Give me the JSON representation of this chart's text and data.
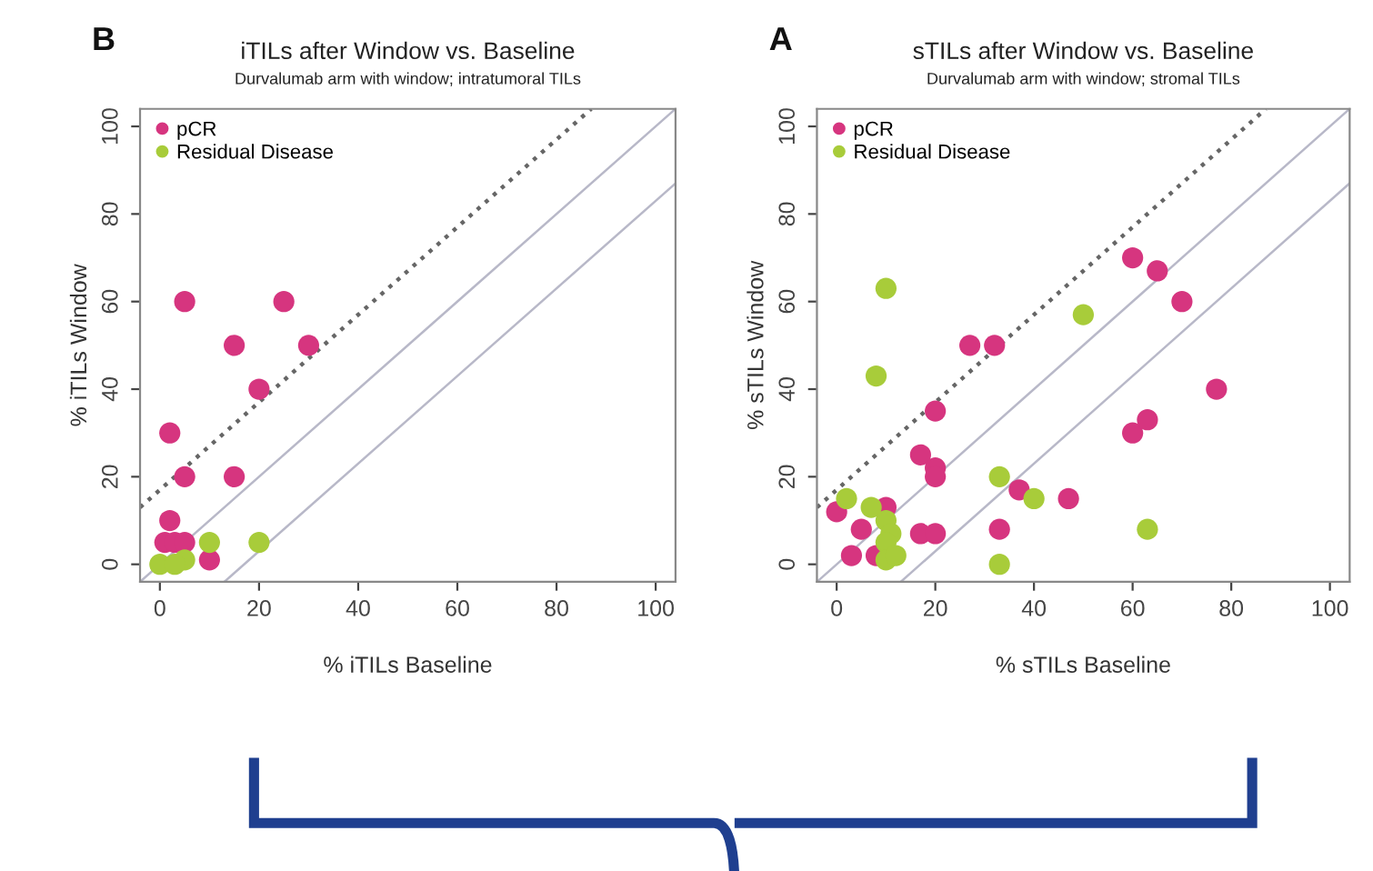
{
  "chart_data": [
    {
      "type": "scatter",
      "title": "iTILs after Window vs. Baseline",
      "subtitle": "Durvalumab arm with window; intratumoral TILs",
      "xlabel": "% iTILs Baseline",
      "ylabel": "% iTILs Window",
      "annotations": [
        "B"
      ],
      "xlim": [
        -4,
        104
      ],
      "ylim": [
        -4,
        104
      ],
      "xticks": [
        0,
        20,
        40,
        60,
        80,
        100
      ],
      "yticks": [
        0,
        20,
        40,
        60,
        80,
        100
      ],
      "grid": false,
      "legend": "top left",
      "marker": "circle",
      "series": [
        {
          "name": "pCR",
          "color": "#d6357f",
          "x": [
            5,
            25,
            15,
            30,
            20,
            2,
            5,
            15,
            2,
            1,
            3,
            5,
            10
          ],
          "values": [
            60,
            60,
            50,
            50,
            40,
            30,
            20,
            20,
            10,
            5,
            5,
            5,
            1
          ]
        },
        {
          "name": "Residual Disease",
          "color": "#a8cc3a",
          "x": [
            0,
            5,
            10,
            20,
            3
          ],
          "values": [
            0,
            1,
            5,
            5,
            0
          ]
        },
        {
          "type": "line",
          "marker": "none",
          "color": "#666666",
          "line_style": "dotted",
          "x": [
            -4,
            87
          ],
          "values": [
            13,
            104
          ]
        },
        {
          "type": "line",
          "marker": "none",
          "color": "#b8b8c8",
          "line_style": "solid",
          "x": [
            -4,
            104
          ],
          "values": [
            -4,
            104
          ]
        },
        {
          "type": "line",
          "marker": "none",
          "color": "#b8b8c8",
          "line_style": "solid",
          "x": [
            13,
            104
          ],
          "values": [
            -4,
            87
          ]
        }
      ]
    },
    {
      "type": "scatter",
      "title": "sTILs after Window vs. Baseline",
      "subtitle": "Durvalumab arm with window; stromal TILs",
      "xlabel": "% sTILs Baseline",
      "ylabel": "% sTILs Window",
      "annotations": [
        "A"
      ],
      "xlim": [
        -4,
        104
      ],
      "ylim": [
        -4,
        104
      ],
      "xticks": [
        0,
        20,
        40,
        60,
        80,
        100
      ],
      "yticks": [
        0,
        20,
        40,
        60,
        80,
        100
      ],
      "grid": false,
      "legend": "top left",
      "marker": "circle",
      "series": [
        {
          "name": "pCR",
          "color": "#d6357f",
          "x": [
            0,
            10,
            20,
            17,
            20,
            20,
            27,
            32,
            60,
            65,
            70,
            77,
            60,
            63,
            37,
            47,
            17,
            20,
            33,
            5,
            3,
            8
          ],
          "values": [
            12,
            13,
            35,
            25,
            22,
            20,
            50,
            50,
            70,
            67,
            60,
            40,
            30,
            33,
            17,
            15,
            7,
            7,
            8,
            8,
            2,
            2
          ]
        },
        {
          "name": "Residual Disease",
          "color": "#a8cc3a",
          "x": [
            10,
            8,
            50,
            33,
            40,
            63,
            33,
            2,
            7,
            10,
            11,
            10,
            10,
            12
          ],
          "values": [
            63,
            43,
            57,
            20,
            15,
            8,
            0,
            15,
            13,
            10,
            7,
            5,
            1,
            2
          ]
        },
        {
          "type": "line",
          "marker": "none",
          "color": "#666666",
          "line_style": "dotted",
          "x": [
            -4,
            87
          ],
          "values": [
            13,
            104
          ]
        },
        {
          "type": "line",
          "marker": "none",
          "color": "#b8b8c8",
          "line_style": "solid",
          "x": [
            -4,
            104
          ],
          "values": [
            -4,
            104
          ]
        },
        {
          "type": "line",
          "marker": "none",
          "color": "#b8b8c8",
          "line_style": "solid",
          "x": [
            13,
            104
          ],
          "values": [
            -4,
            87
          ]
        }
      ]
    }
  ]
}
